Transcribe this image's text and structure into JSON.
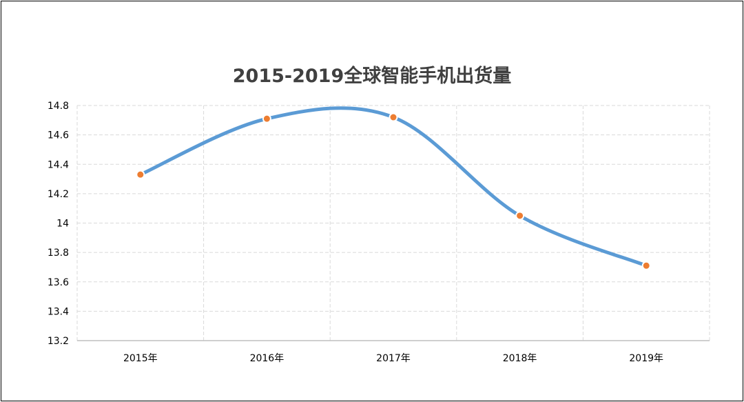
{
  "chart_data": {
    "type": "line",
    "title": "2015-2019全球智能手机出货量",
    "categories": [
      "2015年",
      "2016年",
      "2017年",
      "2018年",
      "2019年"
    ],
    "series": [
      {
        "values": [
          14.33,
          14.71,
          14.72,
          14.05,
          13.71
        ]
      }
    ],
    "y_ticks": [
      "14.8",
      "14.6",
      "14.4",
      "14.2",
      "14",
      "13.8",
      "13.6",
      "13.4",
      "13.2"
    ],
    "ylim": [
      13.2,
      14.8
    ],
    "smooth": true,
    "grid": true,
    "grid_style": "dashed",
    "legend": "none",
    "colors": {
      "line": "#5b9bd5",
      "marker": "#ed7d31",
      "grid": "#d9d9d9",
      "title": "#404040",
      "axis": "#bfbfbf"
    }
  }
}
